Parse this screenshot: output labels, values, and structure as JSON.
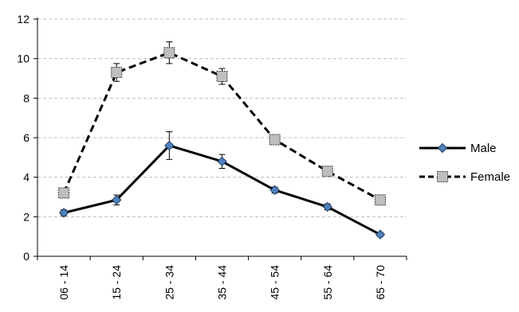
{
  "chart_data": {
    "type": "line",
    "categories": [
      "06 - 14",
      "15 - 24",
      "25 - 34",
      "35 - 44",
      "45 - 54",
      "55 - 64",
      "65 - 70"
    ],
    "ylim": [
      0,
      12
    ],
    "yticks": [
      "0",
      "2",
      "4",
      "6",
      "8",
      "10",
      "12"
    ],
    "grid": true,
    "legend_position": "right",
    "series": [
      {
        "name": "Male",
        "values": [
          2.2,
          2.85,
          5.6,
          4.8,
          3.35,
          2.5,
          1.1
        ],
        "errors": [
          0.15,
          0.25,
          0.7,
          0.35,
          0.15,
          0.15,
          0.1
        ],
        "color": "#000000",
        "marker_fill": "#4f81bd",
        "line_style": "solid",
        "marker": "diamond"
      },
      {
        "name": "Female",
        "values": [
          3.2,
          9.3,
          10.3,
          9.1,
          5.9,
          4.3,
          2.85
        ],
        "errors": [
          0.15,
          0.45,
          0.55,
          0.4,
          0.15,
          0.15,
          0.15
        ],
        "color": "#000000",
        "marker_fill": "#bfbfbf",
        "line_style": "dashed",
        "marker": "square"
      }
    ]
  }
}
